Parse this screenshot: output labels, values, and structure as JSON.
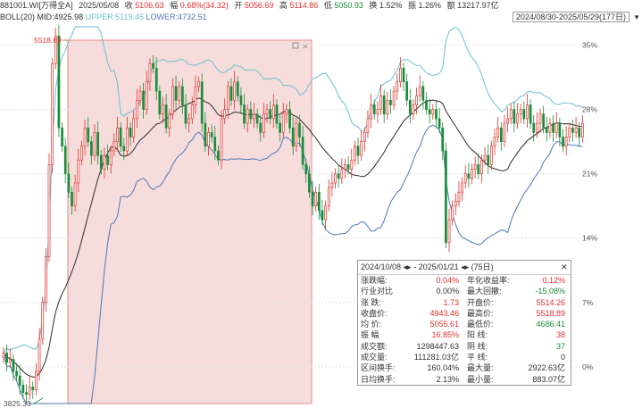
{
  "header": {
    "code": "881001.WI[万得全A]",
    "date": "2025/05/08",
    "close_label": "收",
    "close": "5106.63",
    "chg_label": "幅",
    "chg": "0.68%(34.32)",
    "open_label": "开",
    "open": "5056.69",
    "high_label": "高",
    "high": "5114.86",
    "low_label": "低",
    "low": "5050.93",
    "turn_label": "换",
    "turn": "1.52%",
    "amp_label": "振",
    "amp": "1.26%",
    "amt_label": "额",
    "amt": "13217.97亿"
  },
  "boll": {
    "name": "BOLL(20)",
    "mid": "MID:4925.98",
    "upper": "UPPER:5119.45",
    "lower": "LOWER:4732.51"
  },
  "date_range": "2024/08/30-2025/05/29(177日)",
  "colors": {
    "up": "#e0312b",
    "down": "#1a8c3a",
    "mid": "#2b2b2b",
    "upper": "#6bbfd1",
    "lower": "#4b78b8",
    "select": "#f3d2d0"
  },
  "markers": {
    "max": "5518.89",
    "min": "3825.33"
  },
  "y_axis": [
    "35%",
    "28%",
    "21%",
    "14%",
    "7%",
    "0%"
  ],
  "popup": {
    "range": "2024/10/08 ◂▸ - 2025/01/21 ◂▸  (75日)",
    "rows": [
      [
        "涨跌幅:",
        "0.04%",
        "年化收益率:",
        "0.12%"
      ],
      [
        "行业对比",
        "0.00%",
        "最大回撤:",
        "-15.08%"
      ],
      [
        "涨 跌:",
        "1.73",
        "开盘价:",
        "5514.26"
      ],
      [
        "收盘价:",
        "4943.46",
        "最高价:",
        "5518.89"
      ],
      [
        "均 价:",
        "5055.61",
        "最低价:",
        "4686.41"
      ],
      [
        "振 幅",
        "16.85%",
        "阳 线:",
        "38"
      ],
      [
        "成交额:",
        "1298447.63",
        "阴 线:",
        "37"
      ],
      [
        "成交量:",
        "111281.03亿",
        "平 线:",
        "0"
      ],
      [
        "区间换手:",
        "160.04%",
        "最大量:",
        "2922.63亿"
      ],
      [
        "日均换手:",
        "2.13%",
        "最小量:",
        "883.07亿"
      ]
    ]
  },
  "chart_data": {
    "type": "candlestick",
    "y_unit": "% change from 2024/08/30",
    "ylim": [
      -4,
      37
    ],
    "y_ticks": [
      35,
      28,
      21,
      14,
      7,
      0
    ],
    "series_close": [
      1.5,
      0.5,
      0.8,
      -0.5,
      -1.0,
      -2.0,
      -2.8,
      -3.0,
      -2.2,
      -2.5,
      -0.5,
      3.0,
      7.0,
      12.0,
      22.0,
      33.0,
      36.0,
      26.0,
      24.0,
      21.0,
      19.0,
      17.5,
      20.0,
      22.5,
      24.0,
      26.0,
      24.5,
      23.0,
      25.5,
      23.0,
      21.5,
      23.0,
      22.0,
      23.5,
      24.5,
      26.0,
      24.0,
      23.5,
      26.0,
      25.0,
      27.0,
      29.0,
      30.0,
      28.0,
      31.0,
      33.0,
      32.5,
      30.0,
      27.5,
      28.5,
      26.0,
      27.5,
      30.5,
      29.0,
      30.5,
      28.5,
      26.5,
      27.0,
      28.5,
      30.5,
      31.0,
      26.5,
      24.0,
      25.5,
      25.0,
      23.5,
      22.5,
      27.0,
      28.0,
      30.5,
      29.0,
      31.0,
      29.5,
      28.5,
      26.5,
      28.0,
      27.0,
      27.5,
      26.5,
      25.5,
      27.5,
      28.0,
      27.0,
      28.5,
      26.5,
      25.5,
      27.5,
      28.0,
      26.0,
      24.0,
      26.5,
      25.0,
      22.0,
      21.0,
      19.0,
      17.5,
      19.0,
      17.0,
      16.0,
      17.5,
      19.5,
      20.0,
      21.0,
      20.5,
      21.5,
      22.0,
      21.5,
      22.5,
      24.0,
      23.0,
      24.5,
      25.5,
      27.0,
      28.5,
      27.5,
      28.0,
      29.5,
      27.5,
      29.0,
      28.5,
      30.0,
      31.0,
      32.5,
      31.0,
      29.0,
      27.5,
      28.5,
      29.5,
      30.5,
      29.0,
      28.0,
      27.5,
      28.0,
      27.0,
      26.0,
      23.5,
      13.5,
      16.0,
      17.5,
      18.0,
      19.0,
      20.0,
      21.0,
      20.5,
      21.5,
      22.0,
      21.0,
      22.5,
      23.0,
      22.0,
      24.0,
      25.0,
      26.0,
      24.5,
      26.5,
      27.0,
      28.0,
      26.5,
      27.5,
      28.0,
      27.0,
      28.5,
      26.5,
      25.5,
      26.5,
      27.5,
      26.0,
      25.5,
      26.5,
      25.5,
      26.5,
      25.0,
      24.0,
      25.0,
      26.0,
      25.5,
      26.0,
      25.0,
      26.5
    ]
  }
}
